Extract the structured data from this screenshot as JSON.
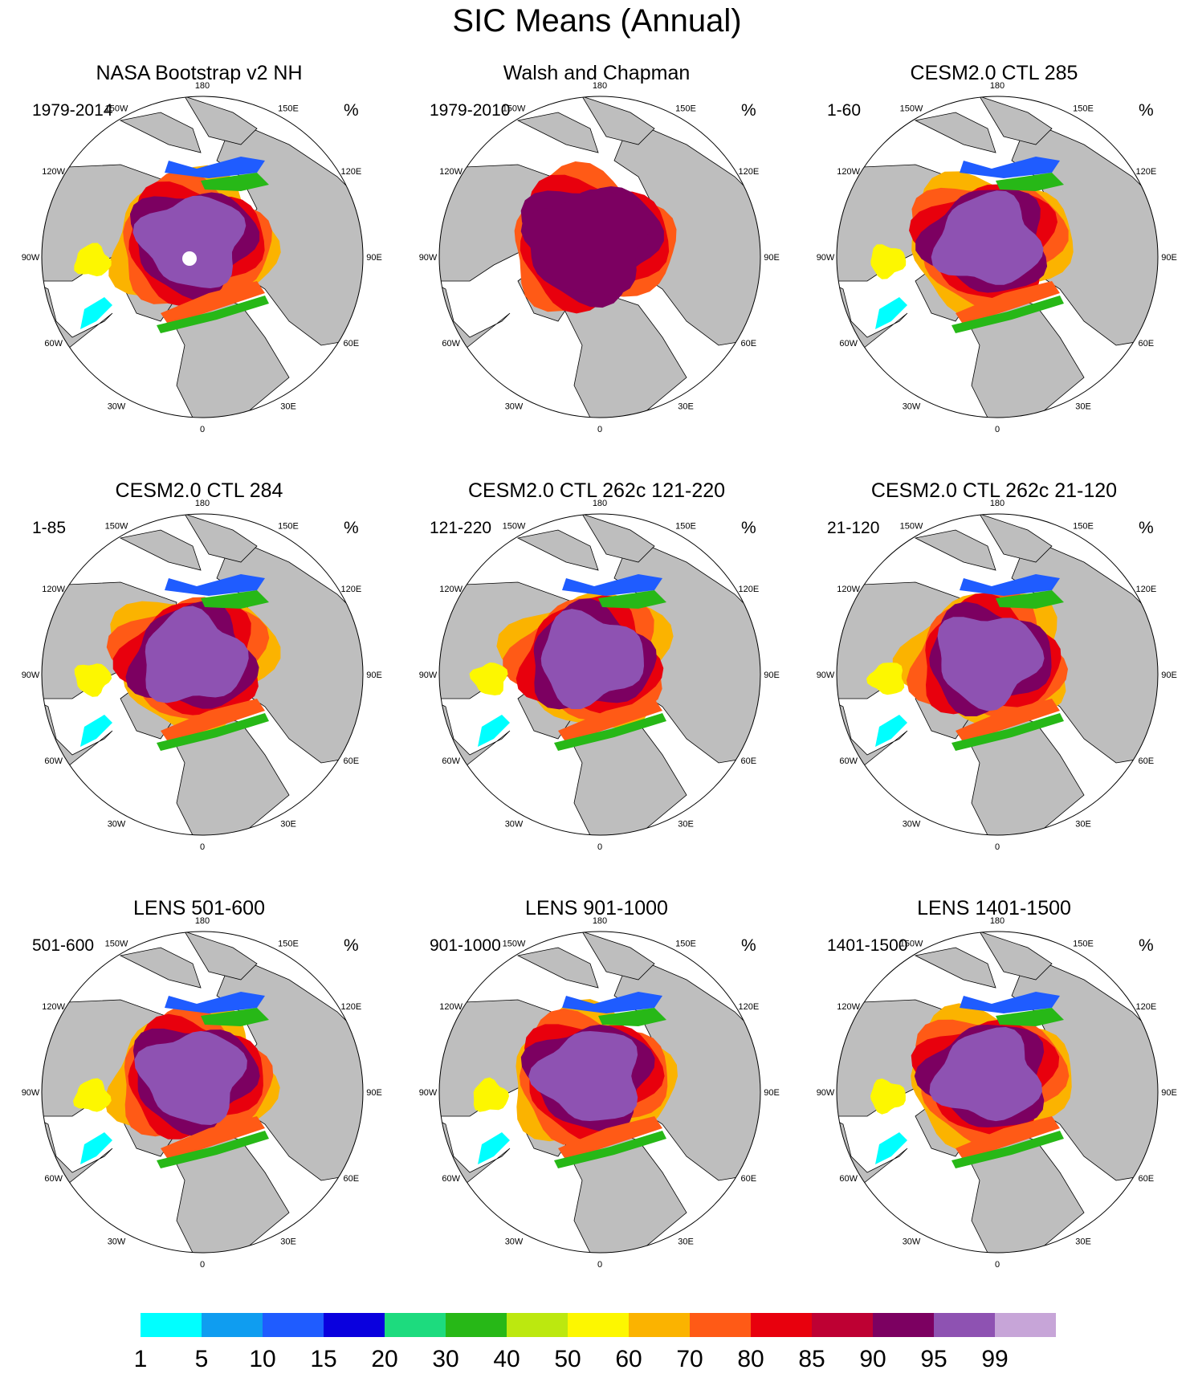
{
  "figure": {
    "title": "SIC Means (Annual)"
  },
  "panels": [
    {
      "title": "NASA Bootstrap v2 NH",
      "period": "1979-2014",
      "unit": "%",
      "variant": "nasa"
    },
    {
      "title": "Walsh and Chapman",
      "period": "1979-2010",
      "unit": "%",
      "variant": "walsh"
    },
    {
      "title": "CESM2.0 CTL 285",
      "period": "1-60",
      "unit": "%",
      "variant": "model"
    },
    {
      "title": "CESM2.0 CTL 284",
      "period": "1-85",
      "unit": "%",
      "variant": "model"
    },
    {
      "title": "CESM2.0 CTL 262c 121-220",
      "period": "121-220",
      "unit": "%",
      "variant": "model"
    },
    {
      "title": "CESM2.0 CTL 262c 21-120",
      "period": "21-120",
      "unit": "%",
      "variant": "model"
    },
    {
      "title": "LENS 501-600",
      "period": "501-600",
      "unit": "%",
      "variant": "lens"
    },
    {
      "title": "LENS 901-1000",
      "period": "901-1000",
      "unit": "%",
      "variant": "lens"
    },
    {
      "title": "LENS 1401-1500",
      "period": "1401-1500",
      "unit": "%",
      "variant": "lens"
    }
  ],
  "longitude_labels": [
    "180",
    "150E",
    "120E",
    "90E",
    "60E",
    "30E",
    "0",
    "30W",
    "60W",
    "90W",
    "120W",
    "150W"
  ],
  "colorbar": {
    "labels": [
      "1",
      "5",
      "10",
      "15",
      "20",
      "30",
      "40",
      "50",
      "60",
      "70",
      "80",
      "85",
      "90",
      "95",
      "99"
    ],
    "colors": [
      "#00ffff",
      "#0f9df0",
      "#1f5cff",
      "#0a00de",
      "#1ddb7e",
      "#27b817",
      "#bce80f",
      "#fdf700",
      "#fbb300",
      "#ff5a16",
      "#e8000d",
      "#be0033",
      "#7c0061",
      "#8e52b2",
      "#c7a5d8"
    ]
  },
  "colors": {
    "land": "#bebebe",
    "ocean": "#ffffff",
    "outline": "#000000"
  }
}
